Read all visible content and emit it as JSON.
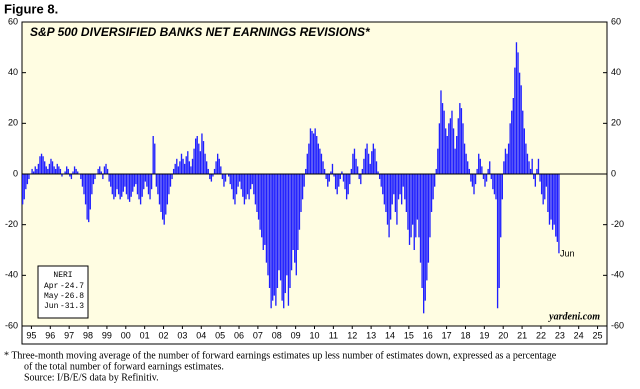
{
  "figure_label": "Figure 8.",
  "chart_data": {
    "type": "bar",
    "title": "S&P 500 DIVERSIFIED BANKS NET EARNINGS REVISIONS*",
    "color": "#1f1fff",
    "grid": false,
    "xlim": [
      1995,
      2026
    ],
    "ylim": [
      -60,
      60
    ],
    "yticks": [
      -60,
      -40,
      -20,
      0,
      20,
      40,
      60
    ],
    "xticks": [
      {
        "value": 1995.5,
        "label": "95"
      },
      {
        "value": 1996.5,
        "label": "96"
      },
      {
        "value": 1997.5,
        "label": "97"
      },
      {
        "value": 1998.5,
        "label": "98"
      },
      {
        "value": 1999.5,
        "label": "99"
      },
      {
        "value": 2000.5,
        "label": "00"
      },
      {
        "value": 2001.5,
        "label": "01"
      },
      {
        "value": 2002.5,
        "label": "02"
      },
      {
        "value": 2003.5,
        "label": "03"
      },
      {
        "value": 2004.5,
        "label": "04"
      },
      {
        "value": 2005.5,
        "label": "05"
      },
      {
        "value": 2006.5,
        "label": "06"
      },
      {
        "value": 2007.5,
        "label": "07"
      },
      {
        "value": 2008.5,
        "label": "08"
      },
      {
        "value": 2009.5,
        "label": "09"
      },
      {
        "value": 2010.5,
        "label": "10"
      },
      {
        "value": 2011.5,
        "label": "11"
      },
      {
        "value": 2012.5,
        "label": "12"
      },
      {
        "value": 2013.5,
        "label": "13"
      },
      {
        "value": 2014.5,
        "label": "14"
      },
      {
        "value": 2015.5,
        "label": "15"
      },
      {
        "value": 2016.5,
        "label": "16"
      },
      {
        "value": 2017.5,
        "label": "17"
      },
      {
        "value": 2018.5,
        "label": "18"
      },
      {
        "value": 2019.5,
        "label": "19"
      },
      {
        "value": 2020.5,
        "label": "20"
      },
      {
        "value": 2021.5,
        "label": "21"
      },
      {
        "value": 2022.5,
        "label": "22"
      },
      {
        "value": 2023.5,
        "label": "23"
      },
      {
        "value": 2024.5,
        "label": "24"
      },
      {
        "value": 2025.5,
        "label": "25"
      }
    ],
    "x": [
      1995,
      1995.083,
      1995.167,
      1995.25,
      1995.333,
      1995.417,
      1995.5,
      1995.583,
      1995.667,
      1995.75,
      1995.833,
      1995.917,
      1996,
      1996.083,
      1996.167,
      1996.25,
      1996.333,
      1996.417,
      1996.5,
      1996.583,
      1996.667,
      1996.75,
      1996.833,
      1996.917,
      1997,
      1997.083,
      1997.167,
      1997.25,
      1997.333,
      1997.417,
      1997.5,
      1997.583,
      1997.667,
      1997.75,
      1997.833,
      1997.917,
      1998,
      1998.083,
      1998.167,
      1998.25,
      1998.333,
      1998.417,
      1998.5,
      1998.583,
      1998.667,
      1998.75,
      1998.833,
      1998.917,
      1999,
      1999.083,
      1999.167,
      1999.25,
      1999.333,
      1999.417,
      1999.5,
      1999.583,
      1999.667,
      1999.75,
      1999.833,
      1999.917,
      2000,
      2000.083,
      2000.167,
      2000.25,
      2000.333,
      2000.417,
      2000.5,
      2000.583,
      2000.667,
      2000.75,
      2000.833,
      2000.917,
      2001,
      2001.083,
      2001.167,
      2001.25,
      2001.333,
      2001.417,
      2001.5,
      2001.583,
      2001.667,
      2001.75,
      2001.833,
      2001.917,
      2002,
      2002.083,
      2002.167,
      2002.25,
      2002.333,
      2002.417,
      2002.5,
      2002.583,
      2002.667,
      2002.75,
      2002.833,
      2002.917,
      2003,
      2003.083,
      2003.167,
      2003.25,
      2003.333,
      2003.417,
      2003.5,
      2003.583,
      2003.667,
      2003.75,
      2003.833,
      2003.917,
      2004,
      2004.083,
      2004.167,
      2004.25,
      2004.333,
      2004.417,
      2004.5,
      2004.583,
      2004.667,
      2004.75,
      2004.833,
      2004.917,
      2005,
      2005.083,
      2005.167,
      2005.25,
      2005.333,
      2005.417,
      2005.5,
      2005.583,
      2005.667,
      2005.75,
      2005.833,
      2005.917,
      2006,
      2006.083,
      2006.167,
      2006.25,
      2006.333,
      2006.417,
      2006.5,
      2006.583,
      2006.667,
      2006.75,
      2006.833,
      2006.917,
      2007,
      2007.083,
      2007.167,
      2007.25,
      2007.333,
      2007.417,
      2007.5,
      2007.583,
      2007.667,
      2007.75,
      2007.833,
      2007.917,
      2008,
      2008.083,
      2008.167,
      2008.25,
      2008.333,
      2008.417,
      2008.5,
      2008.583,
      2008.667,
      2008.75,
      2008.833,
      2008.917,
      2009,
      2009.083,
      2009.167,
      2009.25,
      2009.333,
      2009.417,
      2009.5,
      2009.583,
      2009.667,
      2009.75,
      2009.833,
      2009.917,
      2010,
      2010.083,
      2010.167,
      2010.25,
      2010.333,
      2010.417,
      2010.5,
      2010.583,
      2010.667,
      2010.75,
      2010.833,
      2010.917,
      2011,
      2011.083,
      2011.167,
      2011.25,
      2011.333,
      2011.417,
      2011.5,
      2011.583,
      2011.667,
      2011.75,
      2011.833,
      2011.917,
      2012,
      2012.083,
      2012.167,
      2012.25,
      2012.333,
      2012.417,
      2012.5,
      2012.583,
      2012.667,
      2012.75,
      2012.833,
      2012.917,
      2013,
      2013.083,
      2013.167,
      2013.25,
      2013.333,
      2013.417,
      2013.5,
      2013.583,
      2013.667,
      2013.75,
      2013.833,
      2013.917,
      2014,
      2014.083,
      2014.167,
      2014.25,
      2014.333,
      2014.417,
      2014.5,
      2014.583,
      2014.667,
      2014.75,
      2014.833,
      2014.917,
      2015,
      2015.083,
      2015.167,
      2015.25,
      2015.333,
      2015.417,
      2015.5,
      2015.583,
      2015.667,
      2015.75,
      2015.833,
      2015.917,
      2016,
      2016.083,
      2016.167,
      2016.25,
      2016.333,
      2016.417,
      2016.5,
      2016.583,
      2016.667,
      2016.75,
      2016.833,
      2016.917,
      2017,
      2017.083,
      2017.167,
      2017.25,
      2017.333,
      2017.417,
      2017.5,
      2017.583,
      2017.667,
      2017.75,
      2017.833,
      2017.917,
      2018,
      2018.083,
      2018.167,
      2018.25,
      2018.333,
      2018.417,
      2018.5,
      2018.583,
      2018.667,
      2018.75,
      2018.833,
      2018.917,
      2019,
      2019.083,
      2019.167,
      2019.25,
      2019.333,
      2019.417,
      2019.5,
      2019.583,
      2019.667,
      2019.75,
      2019.833,
      2019.917,
      2020,
      2020.083,
      2020.167,
      2020.25,
      2020.333,
      2020.417,
      2020.5,
      2020.583,
      2020.667,
      2020.75,
      2020.833,
      2020.917,
      2021,
      2021.083,
      2021.167,
      2021.25,
      2021.333,
      2021.417,
      2021.5,
      2021.583,
      2021.667,
      2021.75,
      2021.833,
      2021.917,
      2022,
      2022.083,
      2022.167,
      2022.25,
      2022.333,
      2022.417,
      2022.5,
      2022.583,
      2022.667,
      2022.75,
      2022.833,
      2022.917,
      2023,
      2023.083,
      2023.167,
      2023.25,
      2023.333,
      2023.417
    ],
    "values": [
      -12,
      -10,
      -6,
      -4,
      -2,
      0,
      2,
      1,
      3,
      2,
      4,
      7,
      8,
      7,
      5,
      3,
      2,
      4,
      6,
      5,
      3,
      2,
      4,
      3,
      2,
      -1,
      0,
      1,
      3,
      2,
      -1,
      -2,
      1,
      3,
      2,
      1,
      0,
      -2,
      -5,
      -8,
      -12,
      -18,
      -19,
      -14,
      -8,
      -4,
      -2,
      0,
      2,
      3,
      1,
      -2,
      3,
      4,
      2,
      -3,
      -5,
      -8,
      -10,
      -9,
      -6,
      -8,
      -10,
      -9,
      -7,
      -5,
      -8,
      -10,
      -11,
      -9,
      -7,
      -5,
      -4,
      -8,
      -10,
      -12,
      -9,
      -6,
      -3,
      -5,
      -8,
      -10,
      -6,
      15,
      12,
      -5,
      -8,
      -12,
      -15,
      -18,
      -20,
      -16,
      -12,
      -8,
      -5,
      -2,
      2,
      4,
      6,
      3,
      5,
      8,
      6,
      4,
      7,
      9,
      5,
      3,
      6,
      10,
      14,
      15,
      12,
      9,
      16,
      13,
      8,
      5,
      2,
      -2,
      -3,
      -1,
      2,
      5,
      8,
      6,
      3,
      -2,
      -5,
      -3,
      0,
      -1,
      -4,
      -6,
      -10,
      -12,
      -8,
      -5,
      -3,
      -6,
      -9,
      -12,
      -10,
      -8,
      -10,
      -6,
      -4,
      -8,
      -12,
      -15,
      -18,
      -22,
      -25,
      -30,
      -28,
      -35,
      -40,
      -45,
      -53,
      -50,
      -48,
      -52,
      -45,
      -38,
      -42,
      -50,
      -53,
      -47,
      -40,
      -52,
      -45,
      -38,
      -30,
      -35,
      -40,
      -30,
      -22,
      -15,
      -10,
      -5,
      2,
      8,
      12,
      18,
      17,
      16,
      18,
      15,
      12,
      10,
      8,
      5,
      2,
      -2,
      -5,
      -3,
      1,
      4,
      -1,
      -6,
      -8,
      -5,
      -2,
      1,
      -3,
      -6,
      -10,
      -8,
      -4,
      2,
      8,
      10,
      6,
      3,
      -2,
      -4,
      2,
      6,
      10,
      12,
      8,
      4,
      9,
      12,
      10,
      5,
      1,
      -2,
      -5,
      -8,
      -12,
      -15,
      -20,
      -25,
      -18,
      -12,
      -8,
      -15,
      -20,
      -10,
      -8,
      -12,
      -5,
      -10,
      -15,
      -22,
      -28,
      -25,
      -20,
      -30,
      -25,
      -18,
      -25,
      -35,
      -45,
      -55,
      -50,
      -42,
      -35,
      -25,
      -15,
      -10,
      -5,
      2,
      10,
      20,
      33,
      28,
      25,
      18,
      15,
      20,
      22,
      25,
      18,
      10,
      15,
      22,
      28,
      26,
      20,
      12,
      8,
      5,
      2,
      -3,
      -5,
      -8,
      -4,
      2,
      8,
      6,
      3,
      -2,
      -5,
      -3,
      2,
      5,
      -2,
      -6,
      -8,
      -10,
      -53,
      -45,
      -25,
      -10,
      5,
      10,
      8,
      12,
      20,
      25,
      30,
      42,
      52,
      48,
      40,
      35,
      25,
      18,
      12,
      8,
      5,
      2,
      6,
      -2,
      -5,
      2,
      6,
      -3,
      -8,
      -12,
      -10,
      -5,
      -15,
      -20,
      -18,
      -22,
      -20,
      -24.7,
      -26.8,
      -31.3
    ],
    "annotation": "Jun",
    "legend_box": {
      "title": "NERI",
      "entries": [
        {
          "month": "Apr",
          "value": -24.7
        },
        {
          "month": "May",
          "value": -26.8
        },
        {
          "month": "Jun",
          "value": -31.3
        }
      ]
    },
    "source_mark": "yardeni.com"
  },
  "footnotes": [
    "*  Three-month moving average of the number of forward earnings estimates up less number of estimates down, expressed as a percentage",
    "of the total number of forward earnings estimates.",
    "Source: I/B/E/S data by Refinitiv."
  ]
}
